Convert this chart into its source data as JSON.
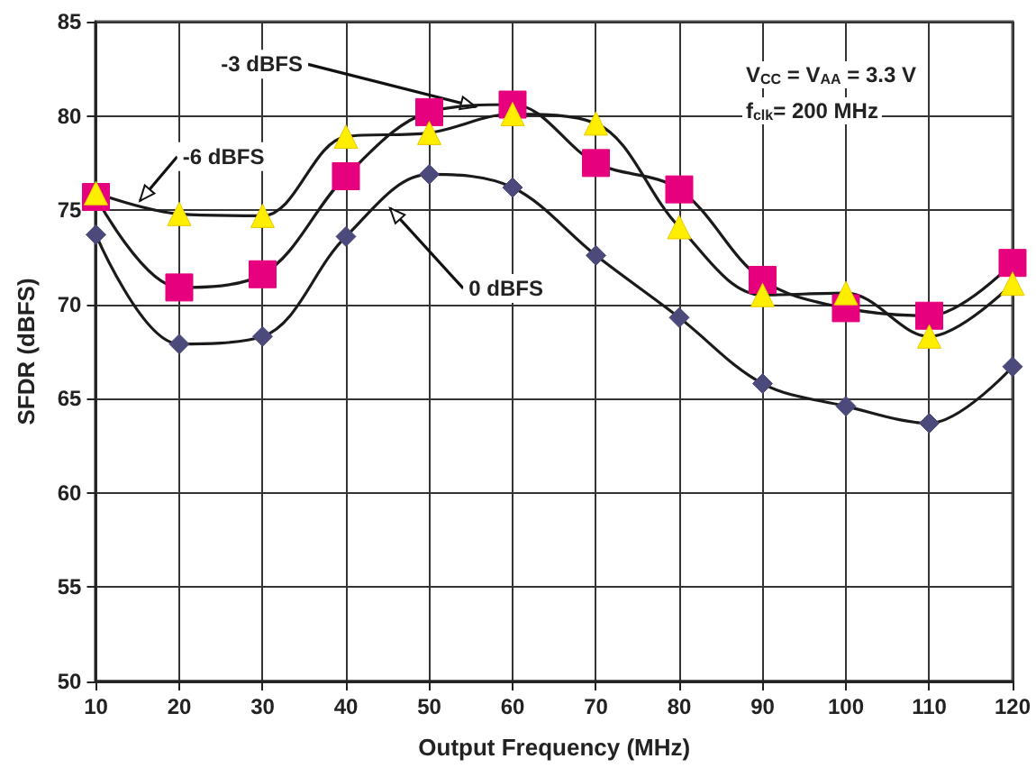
{
  "chart_data": {
    "type": "line",
    "xlabel": "Output Frequency (MHz)",
    "ylabel": "SFDR (dBFS)",
    "x": [
      10,
      20,
      30,
      40,
      50,
      60,
      70,
      80,
      90,
      100,
      110,
      120
    ],
    "series": [
      {
        "name": "0 dBFS",
        "color": "#4b4a7a",
        "marker": "diamond",
        "values": [
          73.7,
          67.9,
          68.3,
          73.6,
          76.9,
          76.2,
          72.6,
          69.3,
          65.8,
          64.6,
          63.7,
          66.7
        ]
      },
      {
        "name": "-3 dBFS",
        "color": "#e6007e",
        "marker": "square",
        "values": [
          75.7,
          70.9,
          71.6,
          76.8,
          80.2,
          80.6,
          77.5,
          76.1,
          71.3,
          69.8,
          69.4,
          72.2
        ]
      },
      {
        "name": "-6 dBFS",
        "color": "#ffee00",
        "marker": "triangle",
        "values": [
          75.9,
          74.8,
          74.7,
          78.9,
          79.1,
          80.1,
          79.6,
          74.1,
          70.5,
          70.6,
          68.3,
          71.1
        ]
      }
    ],
    "xlim": [
      10,
      120
    ],
    "xticks": [
      10,
      20,
      30,
      40,
      50,
      60,
      70,
      80,
      90,
      100,
      110,
      120
    ],
    "ylim": [
      50,
      85
    ],
    "yticks": [
      50,
      55,
      60,
      65,
      70,
      75,
      80,
      85
    ],
    "grid": true,
    "legend": false,
    "line_style": "solid",
    "annotations": [
      "V$_{CC}$ = V$_{AA}$ = 3.3 V",
      "f$_{clk}$= 200 MHz"
    ]
  }
}
